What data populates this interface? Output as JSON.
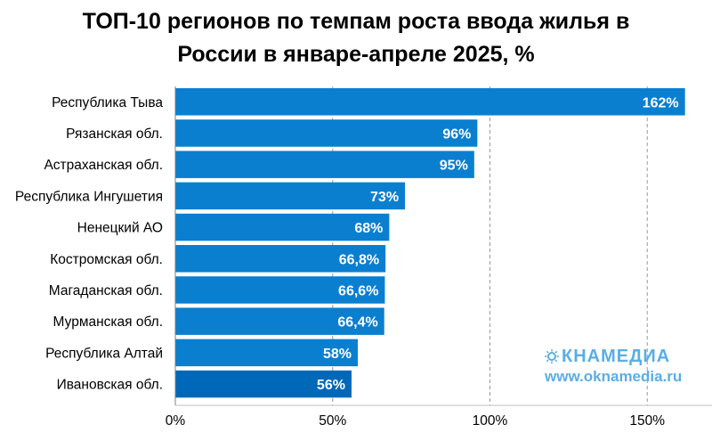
{
  "chart_data": {
    "type": "bar",
    "orientation": "horizontal",
    "title_lines": [
      "ТОП-10 регионов по темпам роста ввода жилья в",
      "России в январе-апреле 2025, %"
    ],
    "xlabel": "",
    "ylabel": "",
    "categories": [
      "Республика Тыва",
      "Рязанская обл.",
      "Астраханская обл.",
      "Республика Ингушетия",
      "Ненецкий АО",
      "Костромская обл.",
      "Магаданская обл.",
      "Мурманская обл.",
      "Республика Алтай",
      "Ивановская обл."
    ],
    "values": [
      162,
      96,
      95,
      73,
      68,
      66.8,
      66.6,
      66.4,
      58,
      56
    ],
    "value_labels": [
      "162%",
      "96%",
      "95%",
      "73%",
      "68%",
      "66,8%",
      "66,6%",
      "66,4%",
      "58%",
      "56%"
    ],
    "xlim": [
      0,
      170
    ],
    "ticks": [
      0,
      50,
      100,
      150
    ],
    "tick_labels": [
      "0%",
      "50%",
      "100%",
      "150%"
    ],
    "grid": "vertical-dashed",
    "legend": "none",
    "bar_color": "#0a7fd0",
    "last_bar_color": "#0068b8"
  },
  "watermark": {
    "logo_text": "КНАМЕДИА",
    "url": "www.oknamedia.ru",
    "color": "#5aaee6"
  }
}
